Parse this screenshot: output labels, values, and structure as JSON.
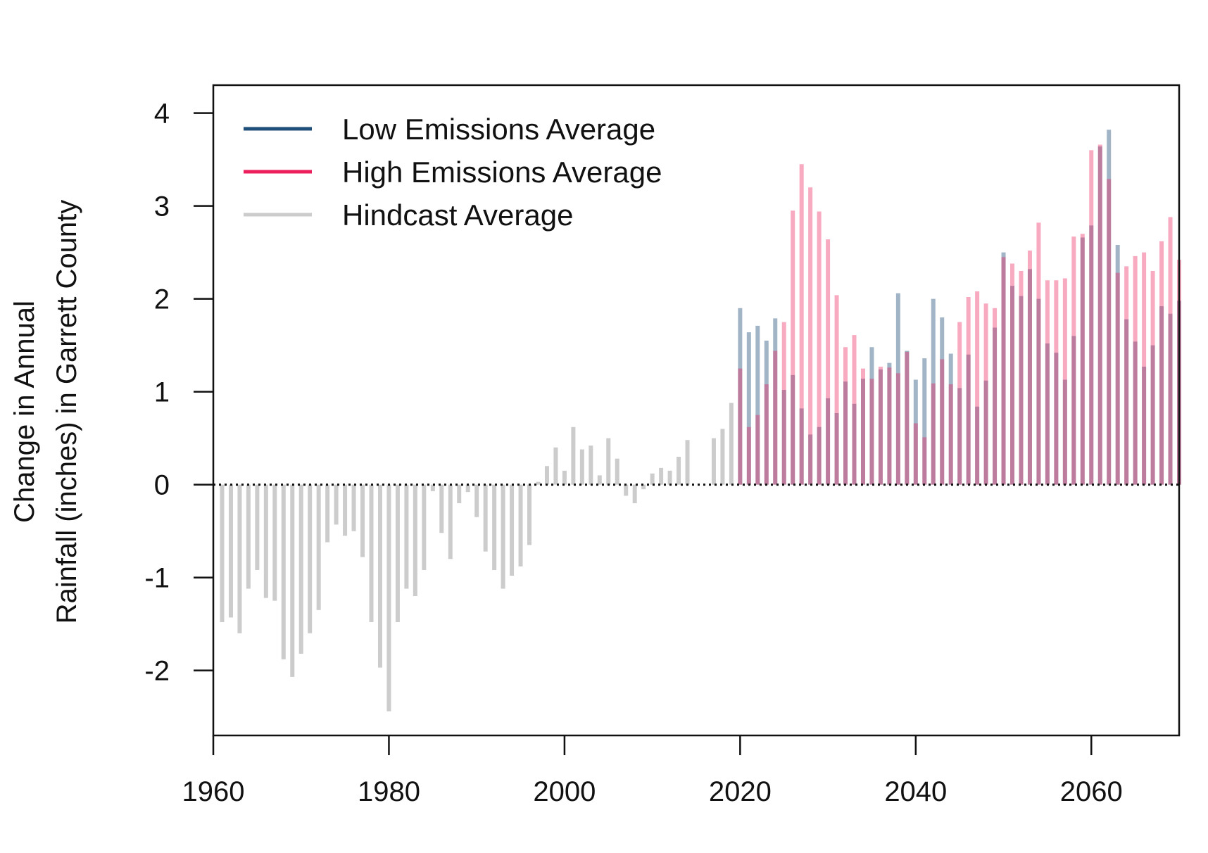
{
  "colors": {
    "low": "#1f4e79",
    "high": "#ec1f5c",
    "hindcast": "#cccccc",
    "overlap": "#9b80a7",
    "low_light": "#9fbbd1",
    "high_light": "#f7a8bf"
  },
  "chart_data": {
    "type": "bar",
    "ylabel_line1": "Change in Annual",
    "ylabel_line2": "Rainfall (inches) in Garrett County",
    "xlim": [
      1960,
      2070
    ],
    "ylim": [
      -2.7,
      4.3
    ],
    "x_ticks": [
      "1960",
      "1980",
      "2000",
      "2020",
      "2040",
      "2060"
    ],
    "x_tick_values": [
      1960,
      1980,
      2000,
      2020,
      2040,
      2060
    ],
    "y_ticks": [
      "-2",
      "-1",
      "0",
      "1",
      "2",
      "3",
      "4"
    ],
    "y_tick_values": [
      -2,
      -1,
      0,
      1,
      2,
      3,
      4
    ],
    "reference_line": 0,
    "legend_position": "top-left",
    "legend": [
      {
        "label": "Low Emissions Average",
        "key": "low"
      },
      {
        "label": "High Emissions Average",
        "key": "high"
      },
      {
        "label": "Hindcast Average",
        "key": "hindcast"
      }
    ],
    "series": [
      {
        "name": "Hindcast Average",
        "key": "hindcast",
        "years": [
          1961,
          1962,
          1963,
          1964,
          1965,
          1966,
          1967,
          1968,
          1969,
          1970,
          1971,
          1972,
          1973,
          1974,
          1975,
          1976,
          1977,
          1978,
          1979,
          1980,
          1981,
          1982,
          1983,
          1984,
          1985,
          1986,
          1987,
          1988,
          1989,
          1990,
          1991,
          1992,
          1993,
          1994,
          1995,
          1996,
          1997,
          1998,
          1999,
          2000,
          2001,
          2002,
          2003,
          2004,
          2005,
          2006,
          2007,
          2008,
          2009,
          2010,
          2011,
          2012,
          2013,
          2014,
          2015,
          2016,
          2017,
          2018,
          2019
        ],
        "values": [
          -1.48,
          -1.43,
          -1.6,
          -1.12,
          -0.92,
          -1.22,
          -1.25,
          -1.88,
          -2.07,
          -1.82,
          -1.6,
          -1.35,
          -0.62,
          -0.43,
          -0.55,
          -0.5,
          -0.78,
          -1.48,
          -1.97,
          -2.44,
          -1.48,
          -1.12,
          -1.2,
          -0.92,
          -0.07,
          -0.52,
          -0.8,
          -0.2,
          -0.08,
          -0.35,
          -0.72,
          -0.92,
          -1.12,
          -0.98,
          -0.88,
          -0.65,
          0.03,
          0.2,
          0.4,
          0.15,
          0.62,
          0.38,
          0.42,
          0.1,
          0.5,
          0.28,
          -0.12,
          -0.2,
          -0.05,
          0.12,
          0.18,
          0.15,
          0.3,
          0.48,
          0.0,
          0.0,
          0.5,
          0.6,
          0.88
        ]
      },
      {
        "name": "Low Emissions Average",
        "key": "low",
        "years": [
          2020,
          2021,
          2022,
          2023,
          2024,
          2025,
          2026,
          2027,
          2028,
          2029,
          2030,
          2031,
          2032,
          2033,
          2034,
          2035,
          2036,
          2037,
          2038,
          2039,
          2040,
          2041,
          2042,
          2043,
          2044,
          2045,
          2046,
          2047,
          2048,
          2049,
          2050,
          2051,
          2052,
          2053,
          2054,
          2055,
          2056,
          2057,
          2058,
          2059,
          2060,
          2061,
          2062,
          2063,
          2064,
          2065,
          2066,
          2067,
          2068,
          2069,
          2070
        ],
        "values": [
          1.9,
          1.64,
          1.71,
          1.55,
          1.79,
          1.02,
          1.18,
          0.82,
          0.54,
          0.62,
          0.93,
          0.77,
          1.11,
          0.87,
          1.14,
          1.48,
          1.24,
          1.31,
          2.06,
          1.44,
          1.13,
          1.36,
          2.0,
          1.8,
          1.41,
          1.04,
          1.4,
          0.84,
          1.12,
          1.69,
          2.5,
          2.14,
          2.03,
          2.32,
          2.0,
          1.52,
          1.42,
          1.13,
          1.6,
          2.66,
          2.79,
          3.64,
          3.82,
          2.58,
          1.78,
          1.54,
          1.27,
          1.5,
          1.92,
          1.84,
          1.98
        ]
      },
      {
        "name": "High Emissions Average",
        "key": "high",
        "years": [
          2020,
          2021,
          2022,
          2023,
          2024,
          2025,
          2026,
          2027,
          2028,
          2029,
          2030,
          2031,
          2032,
          2033,
          2034,
          2035,
          2036,
          2037,
          2038,
          2039,
          2040,
          2041,
          2042,
          2043,
          2044,
          2045,
          2046,
          2047,
          2048,
          2049,
          2050,
          2051,
          2052,
          2053,
          2054,
          2055,
          2056,
          2057,
          2058,
          2059,
          2060,
          2061,
          2062,
          2063,
          2064,
          2065,
          2066,
          2067,
          2068,
          2069,
          2070
        ],
        "values": [
          1.25,
          0.62,
          0.75,
          1.08,
          1.44,
          1.75,
          2.95,
          3.45,
          3.2,
          2.94,
          2.64,
          2.04,
          1.48,
          1.61,
          1.25,
          1.14,
          1.27,
          1.26,
          1.2,
          1.43,
          0.66,
          0.51,
          1.09,
          1.35,
          1.08,
          1.75,
          2.02,
          2.08,
          1.95,
          1.9,
          2.45,
          2.38,
          2.3,
          2.52,
          2.82,
          2.2,
          2.2,
          2.22,
          2.67,
          2.7,
          3.6,
          3.66,
          3.29,
          2.28,
          2.35,
          2.46,
          2.5,
          2.3,
          2.62,
          2.88,
          2.42
        ]
      }
    ]
  }
}
